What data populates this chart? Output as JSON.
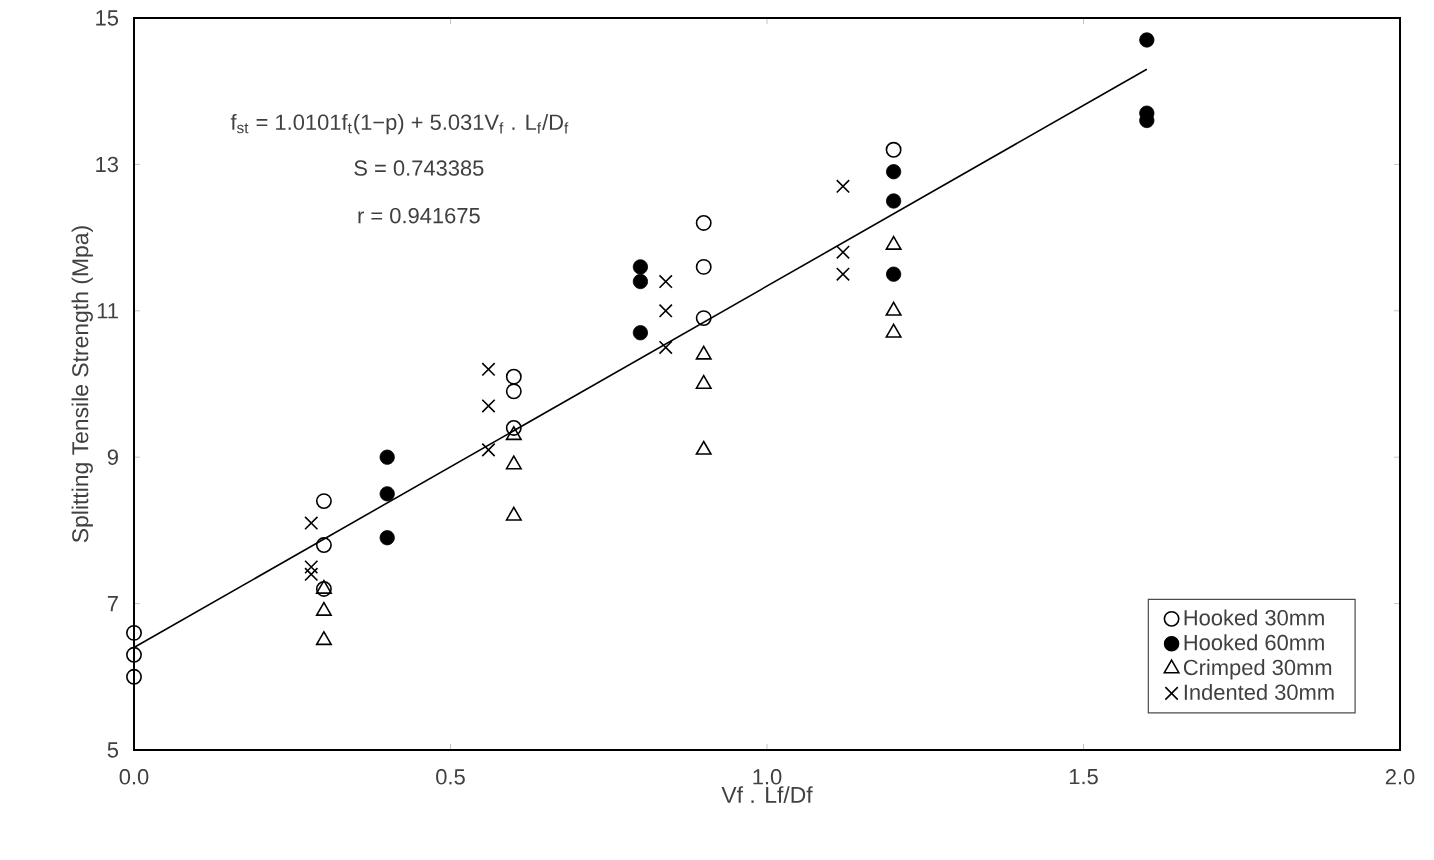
{
  "chart_data": {
    "type": "scatter",
    "xlabel": "Vf . Lf/Df",
    "ylabel": "Splitting Tensile Strength (Mpa)",
    "annotations": [
      "f$_{st}$ = 1.0101f$_{t}$(1−p) + 5.031V$_{f}$ . L$_{f}$/D$_{f}$",
      "S = 0.743385",
      "r = 0.941675"
    ],
    "xlim": [
      0,
      2
    ],
    "ylim": [
      5,
      15
    ],
    "xticks": [
      {
        "value": 0,
        "label": "0.0"
      },
      {
        "value": 0.5,
        "label": "0.5"
      },
      {
        "value": 1,
        "label": "1.0"
      },
      {
        "value": 1.5,
        "label": "1.5"
      },
      {
        "value": 2,
        "label": "2.0"
      }
    ],
    "yticks": [
      5,
      7,
      9,
      11,
      13,
      15
    ],
    "grid": false,
    "legend": "bottom right",
    "series": [
      {
        "name": "Hooked 30mm",
        "color": "#000000",
        "marker": "circle",
        "x": [
          0,
          0,
          0,
          0.3,
          0.3,
          0.3,
          0.6,
          0.6,
          0.6,
          0.9,
          0.9,
          0.9,
          1.2
        ],
        "values": [
          6.6,
          6.3,
          6.0,
          8.4,
          7.8,
          7.2,
          10.1,
          9.9,
          9.4,
          12.2,
          11.6,
          10.9,
          13.2
        ]
      },
      {
        "name": "Hooked 60mm",
        "color": "#000000",
        "marker": "circle",
        "x": [
          0.4,
          0.4,
          0.4,
          0.8,
          0.8,
          0.8,
          1.2,
          1.2,
          1.2,
          1.6,
          1.6,
          1.6
        ],
        "values": [
          9.0,
          8.5,
          7.9,
          11.6,
          11.4,
          10.7,
          12.9,
          12.5,
          11.5,
          14.7,
          13.7,
          13.6
        ]
      },
      {
        "name": "Crimped 30mm",
        "color": "#000000",
        "marker": "triangle",
        "x": [
          0.3,
          0.3,
          0.3,
          0.6,
          0.6,
          0.6,
          0.9,
          0.9,
          0.9,
          1.2,
          1.2,
          1.2
        ],
        "values": [
          7.2,
          6.9,
          6.5,
          9.3,
          8.9,
          8.2,
          10.4,
          10.0,
          9.1,
          11.9,
          11.0,
          10.7
        ]
      },
      {
        "name": "Indented 30mm",
        "color": "#000000",
        "marker": "cross",
        "x": [
          0.28,
          0.28,
          0.28,
          0.56,
          0.56,
          0.56,
          0.84,
          0.84,
          0.84,
          1.12,
          1.12,
          1.12
        ],
        "values": [
          8.1,
          7.5,
          7.4,
          10.2,
          9.7,
          9.1,
          11.4,
          11.0,
          10.5,
          12.7,
          11.8,
          11.5
        ]
      },
      {
        "type": "line",
        "color": "#000000",
        "marker": "none",
        "x": [
          0,
          1.6
        ],
        "values": [
          6.4,
          14.3
        ]
      }
    ]
  }
}
